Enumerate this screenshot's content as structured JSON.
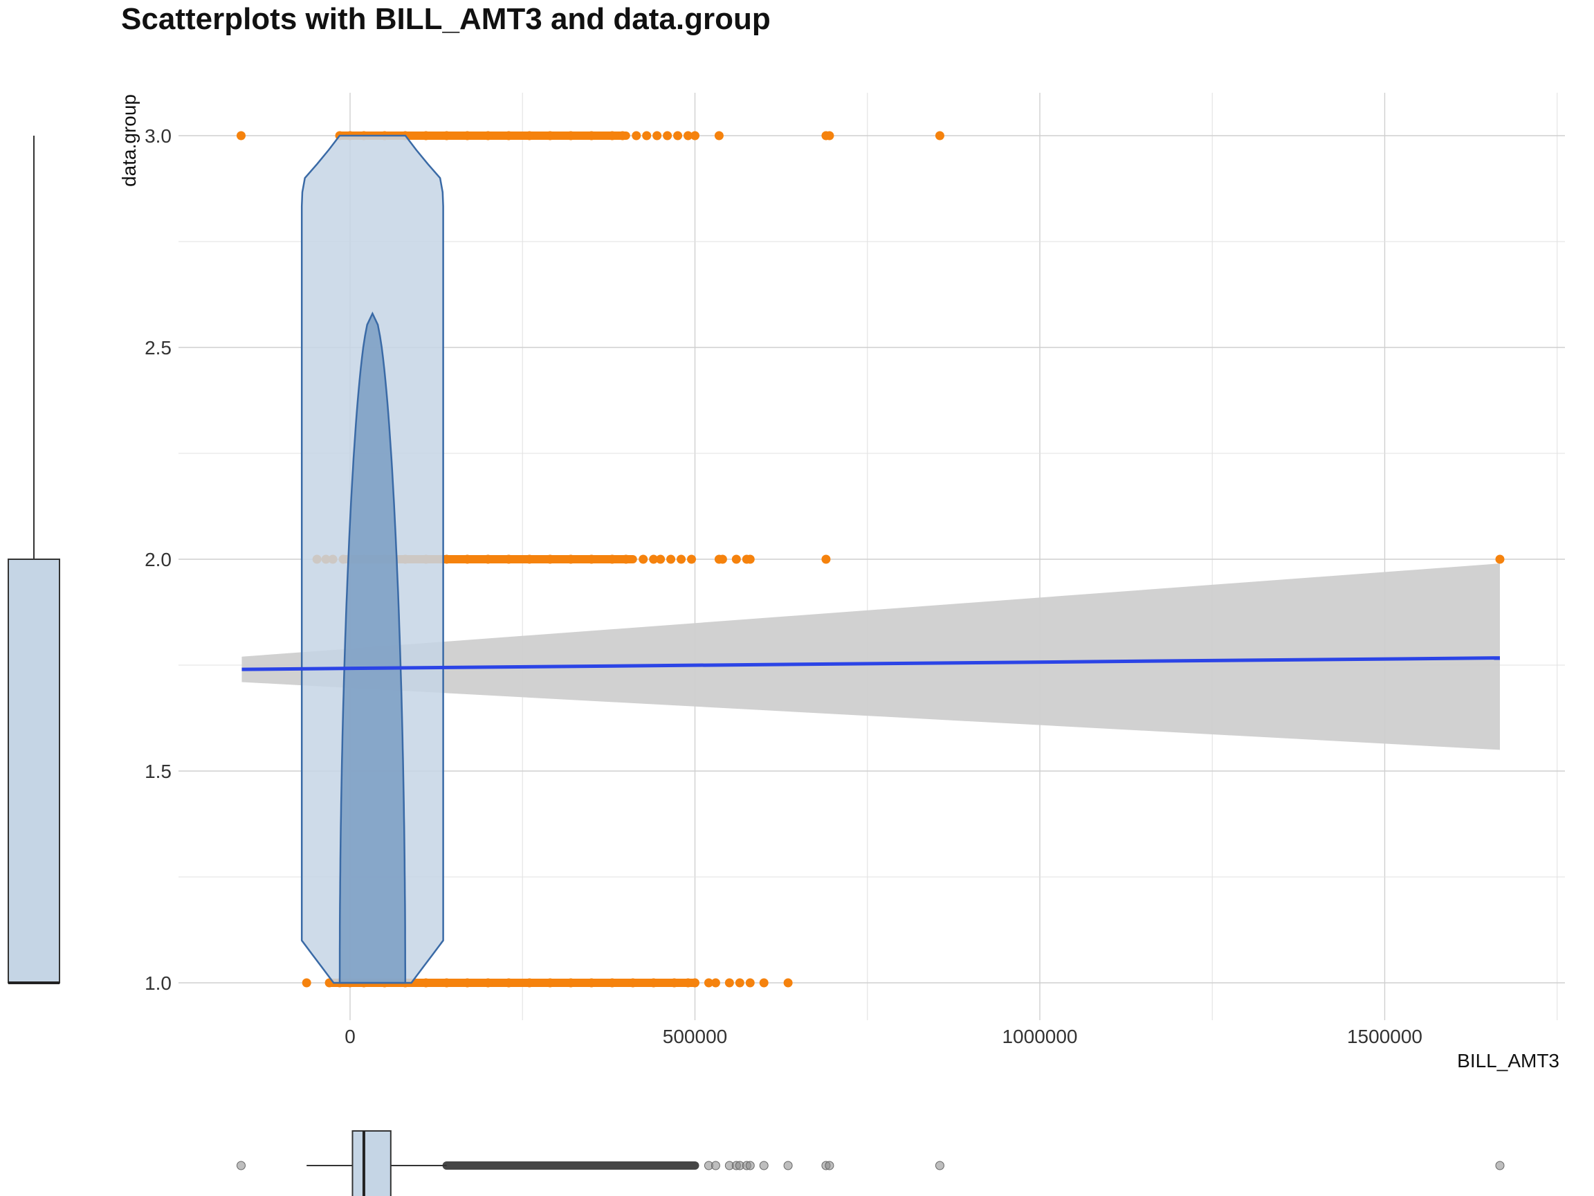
{
  "chart_data": {
    "type": "scatter",
    "title": "Scatterplots with BILL_AMT3 and data.group",
    "xlabel": "BILL_AMT3",
    "ylabel": "data.group",
    "xlim": [
      -250000,
      1750000
    ],
    "ylim": [
      0.9,
      3.1
    ],
    "x_ticks": [
      0,
      500000,
      1000000,
      1500000
    ],
    "x_tick_labels": [
      "0",
      "500000",
      "1000000",
      "1500000"
    ],
    "y_ticks": [
      1.0,
      1.5,
      2.0,
      2.5,
      3.0
    ],
    "y_tick_labels": [
      "1.0",
      "1.5",
      "2.0",
      "2.5",
      "3.0"
    ],
    "grid": true,
    "legend": "none",
    "colors": {
      "points": "#f5820d",
      "smooth_line": "#2b44e6",
      "confidence_band": "#cfcfcf",
      "density_fill": "#c5d5e5",
      "density_inner_fill": "#7fa1c5",
      "density_stroke": "#3a6aa6",
      "box_fill": "#c5d5e5",
      "outlier": "#333333"
    },
    "series": [
      {
        "y": 3,
        "x": [
          -158000,
          -15000,
          0,
          20000,
          50000,
          80000,
          110000,
          140000,
          170000,
          200000,
          230000,
          260000,
          290000,
          320000,
          350000,
          380000,
          395000,
          415000,
          430000,
          445000,
          460000,
          475000,
          490000,
          500000,
          535000,
          690000,
          695000,
          855000
        ],
        "dense_range": [
          -15000,
          400000
        ]
      },
      {
        "y": 2,
        "x": [
          -48000,
          -35000,
          -25000,
          -10000,
          0,
          20000,
          50000,
          80000,
          110000,
          140000,
          170000,
          200000,
          230000,
          260000,
          290000,
          320000,
          350000,
          380000,
          400000,
          425000,
          440000,
          450000,
          465000,
          480000,
          495000,
          535000,
          540000,
          560000,
          575000,
          580000,
          690000,
          1667000
        ],
        "dense_range": [
          -10000,
          410000
        ]
      },
      {
        "y": 1,
        "x": [
          -63000,
          -30000,
          -15000,
          0,
          20000,
          50000,
          80000,
          110000,
          140000,
          170000,
          200000,
          230000,
          260000,
          290000,
          320000,
          350000,
          380000,
          410000,
          440000,
          470000,
          490000,
          500000,
          520000,
          530000,
          550000,
          565000,
          580000,
          600000,
          635000
        ],
        "dense_range": [
          -30000,
          500000
        ]
      }
    ],
    "smooth": {
      "method": "lm",
      "x": [
        -157000,
        1667000
      ],
      "y": [
        1.74,
        1.767
      ],
      "ci_lower": [
        1.71,
        1.55
      ],
      "ci_upper": [
        1.77,
        1.99
      ]
    },
    "density_outer": {
      "y_range": [
        1.0,
        3.0
      ],
      "x_left_min": -70000,
      "x_right_max": 135000
    },
    "density_inner": {
      "y_range": [
        1.0,
        2.58
      ],
      "x_left_min": -15000,
      "x_right_max": 80000
    },
    "y_marginal_box": {
      "min": 1,
      "q1": 1,
      "median": 1,
      "q3": 2,
      "max": 3
    },
    "x_marginal_box": {
      "min": -63000,
      "q1": 3500,
      "median": 20000,
      "q3": 59000,
      "whisker_high": 140000,
      "outliers_dense_range": [
        140000,
        500000
      ],
      "outliers": [
        -158000,
        520000,
        530000,
        550000,
        560000,
        565000,
        575000,
        580000,
        600000,
        635000,
        690000,
        695000,
        855000,
        1667000
      ]
    }
  }
}
